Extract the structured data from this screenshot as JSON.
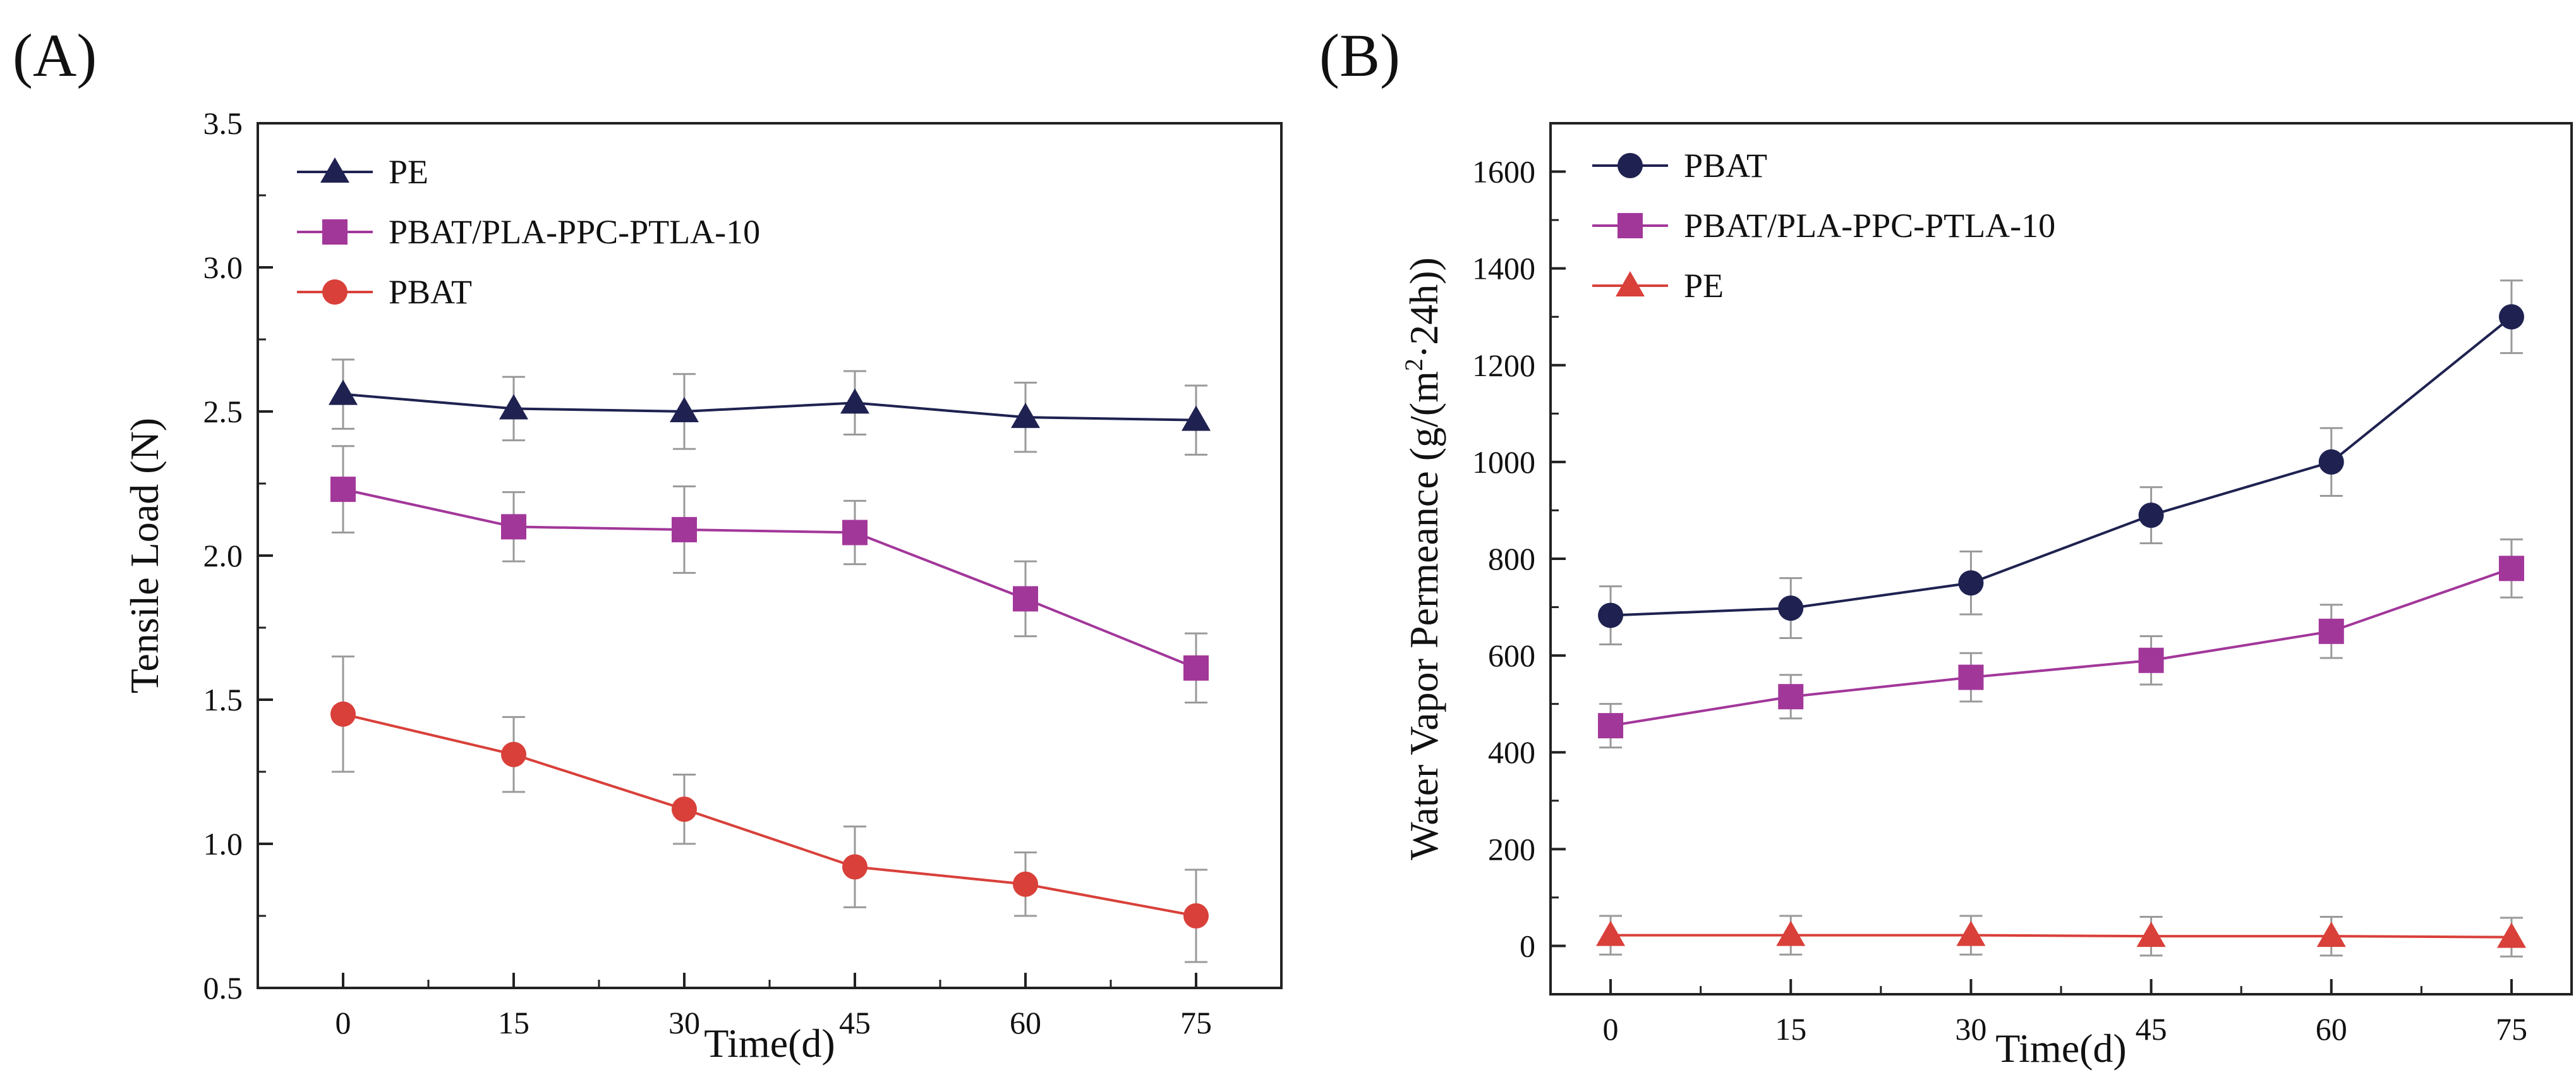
{
  "chart_data": [
    {
      "panel_label": "(A)",
      "type": "line",
      "xlabel": "Time(d)",
      "ylabel": "Tensile Load (N)",
      "x": [
        0,
        15,
        30,
        45,
        60,
        75
      ],
      "xlim": [
        -7.5,
        82.5
      ],
      "ylim": [
        0.5,
        3.5
      ],
      "xticks": [
        0,
        15,
        30,
        45,
        60,
        75
      ],
      "yticks": [
        "0.5",
        "1.0",
        "1.5",
        "2.0",
        "2.5",
        "3.0",
        "3.5"
      ],
      "legend_position": "top-left",
      "series": [
        {
          "name": "PE",
          "marker": "triangle",
          "color": "#1f2250",
          "values": [
            2.56,
            2.51,
            2.5,
            2.53,
            2.48,
            2.47
          ],
          "errors": [
            0.12,
            0.11,
            0.13,
            0.11,
            0.12,
            0.12
          ]
        },
        {
          "name": "PBAT/PLA-PPC-PTLA-10",
          "marker": "square",
          "color": "#a2379a",
          "values": [
            2.23,
            2.1,
            2.09,
            2.08,
            1.85,
            1.61
          ],
          "errors": [
            0.15,
            0.12,
            0.15,
            0.11,
            0.13,
            0.12
          ]
        },
        {
          "name": "PBAT",
          "marker": "circle",
          "color": "#d9403a",
          "values": [
            1.45,
            1.31,
            1.12,
            0.92,
            0.86,
            0.75
          ],
          "errors": [
            0.2,
            0.13,
            0.12,
            0.14,
            0.11,
            0.16
          ]
        }
      ]
    },
    {
      "panel_label": "(B)",
      "type": "line",
      "xlabel": "Time(d)",
      "ylabel_main": "Water Vapor Permeance (g/(m",
      "ylabel_sup": "2",
      "ylabel_tail": "·24h))",
      "x": [
        0,
        15,
        30,
        45,
        60,
        75
      ],
      "xlim": [
        -5,
        80
      ],
      "ylim": [
        -100,
        1700
      ],
      "xticks": [
        0,
        15,
        30,
        45,
        60,
        75
      ],
      "yticks": [
        "0",
        "200",
        "400",
        "600",
        "800",
        "1000",
        "1200",
        "1400",
        "1600"
      ],
      "legend_position": "top-left",
      "series": [
        {
          "name": "PBAT",
          "marker": "circle",
          "color": "#1f2250",
          "values": [
            683,
            698,
            750,
            890,
            1000,
            1300
          ],
          "errors": [
            60,
            62,
            65,
            58,
            70,
            75
          ]
        },
        {
          "name": "PBAT/PLA-PPC-PTLA-10",
          "marker": "square",
          "color": "#a2379a",
          "values": [
            455,
            515,
            555,
            590,
            650,
            780
          ],
          "errors": [
            45,
            45,
            50,
            50,
            55,
            60
          ]
        },
        {
          "name": "PE",
          "marker": "triangle",
          "color": "#d9403a",
          "values": [
            22,
            22,
            22,
            20,
            20,
            18
          ],
          "errors": [
            40,
            40,
            40,
            40,
            40,
            40
          ]
        }
      ]
    }
  ]
}
